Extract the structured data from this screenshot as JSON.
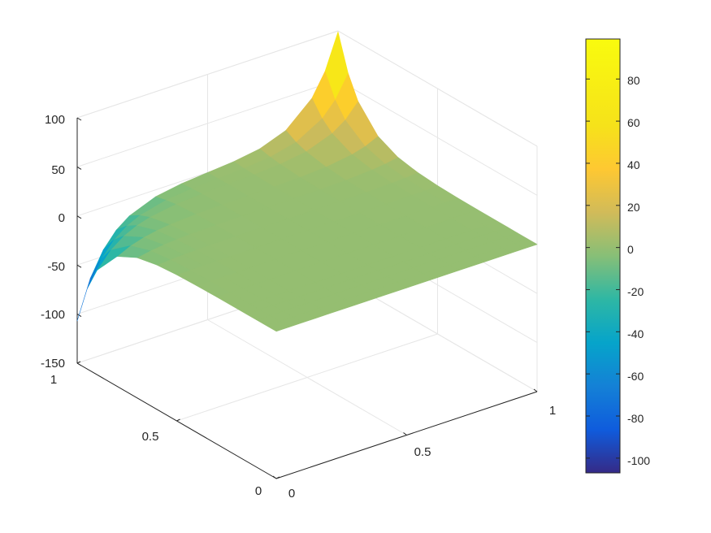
{
  "chart_data": {
    "type": "surface",
    "title": "",
    "xlabel": "",
    "ylabel": "",
    "zlabel": "",
    "colormap": "parula",
    "colorbar": "right",
    "grid": true,
    "x": [
      0,
      0.05,
      0.1,
      0.15,
      0.2,
      0.3,
      0.4,
      0.5,
      0.6,
      0.7,
      0.8,
      0.9,
      0.95,
      1
    ],
    "y": [
      0,
      0.05,
      0.1,
      0.15,
      0.2,
      0.3,
      0.4,
      0.5,
      0.6,
      0.7,
      0.8,
      0.9,
      0.95,
      1
    ],
    "xlim": [
      0,
      1
    ],
    "ylim": [
      0,
      1
    ],
    "zlim": [
      -150,
      100
    ],
    "clim": [
      -107,
      99
    ],
    "x_ticks": [
      "0",
      "0.5",
      "1"
    ],
    "y_ticks": [
      "0",
      "0.5",
      "1"
    ],
    "z_ticks": [
      "-150",
      "-100",
      "-50",
      "0",
      "50",
      "100"
    ],
    "colorbar_ticks": [
      "-100",
      "-80",
      "-60",
      "-40",
      "-20",
      "0",
      "20",
      "40",
      "60",
      "80"
    ],
    "peaks": [
      {
        "x": 1,
        "y": 1,
        "z": 99
      },
      {
        "x": 0,
        "y": 1,
        "z": -107
      }
    ],
    "baseline_z": 0
  }
}
